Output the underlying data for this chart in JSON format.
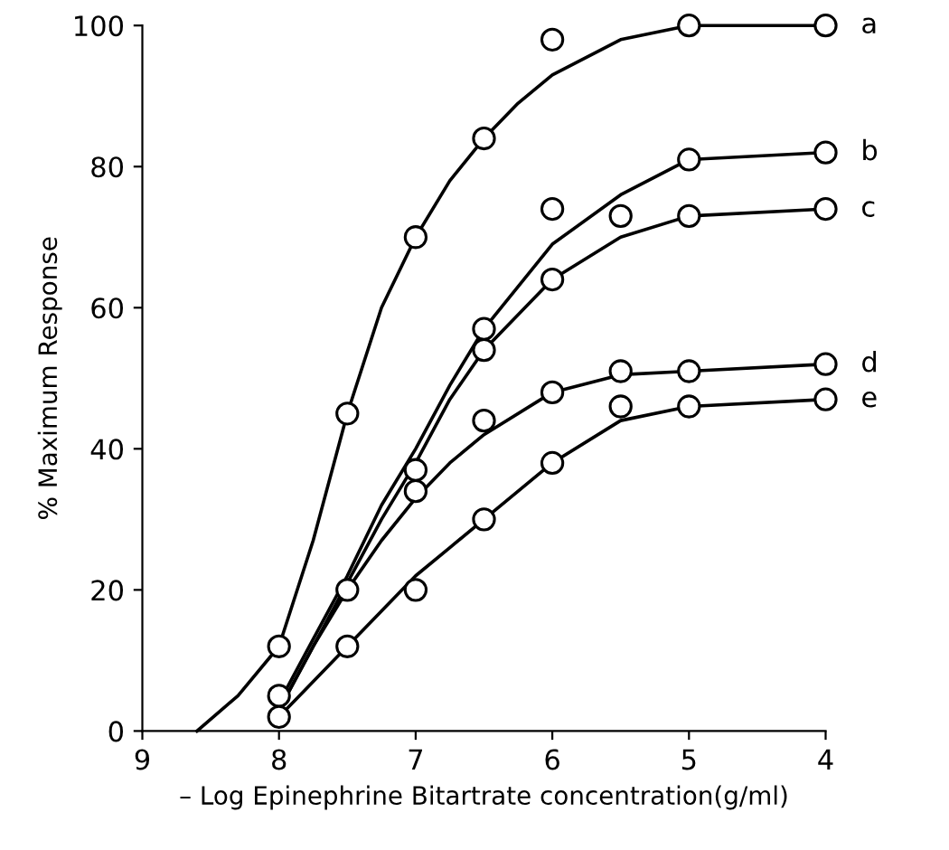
{
  "chart_data": {
    "type": "line",
    "xlabel": "– Log Epinephrine Bitartrate concentration(g/ml)",
    "ylabel": "% Maximum Response",
    "xlim": [
      9,
      4
    ],
    "ylim": [
      0,
      100
    ],
    "xticks": [
      9,
      8,
      7,
      6,
      5,
      4
    ],
    "yticks": [
      0,
      20,
      40,
      60,
      80,
      100
    ],
    "grid": false,
    "legend": false,
    "series": [
      {
        "type": "scatter",
        "marker": "circle",
        "color": "#000000",
        "x": [
          8,
          7.5,
          7,
          6.5,
          6,
          5,
          4
        ],
        "values": [
          12,
          45,
          70,
          84,
          98,
          100,
          100
        ]
      },
      {
        "type": "scatter",
        "marker": "circle",
        "color": "#000000",
        "x": [
          8,
          7.5,
          7,
          6.5,
          6,
          5,
          4
        ],
        "values": [
          5,
          20,
          37,
          57,
          74,
          81,
          82
        ]
      },
      {
        "type": "scatter",
        "marker": "circle",
        "color": "#000000",
        "x": [
          7,
          6.5,
          6,
          5.5,
          5,
          4
        ],
        "values": [
          34,
          54,
          64,
          73,
          73,
          74
        ]
      },
      {
        "type": "scatter",
        "marker": "circle",
        "color": "#000000",
        "x": [
          6.5,
          6,
          5.5,
          5,
          4
        ],
        "values": [
          44,
          48,
          51,
          51,
          52
        ]
      },
      {
        "type": "scatter",
        "marker": "circle",
        "color": "#000000",
        "x": [
          8,
          7.5,
          7,
          6.5,
          6,
          5.5,
          5,
          4
        ],
        "values": [
          2,
          12,
          20,
          30,
          38,
          46,
          46,
          47
        ]
      },
      {
        "name": "a",
        "marker": "none",
        "color": "#000000",
        "x": [
          8.6,
          8.3,
          8,
          7.75,
          7.5,
          7.25,
          7,
          6.75,
          6.5,
          6.25,
          6,
          5.5,
          5,
          4
        ],
        "values": [
          0,
          5,
          12,
          27,
          45,
          60,
          70,
          78,
          84,
          89,
          93,
          98,
          100,
          100
        ]
      },
      {
        "name": "b",
        "marker": "none",
        "color": "#000000",
        "x": [
          8,
          7.75,
          7.5,
          7.25,
          7,
          6.75,
          6.5,
          6,
          5.5,
          5,
          4
        ],
        "values": [
          4,
          13,
          22,
          32,
          40,
          49,
          57,
          69,
          76,
          81,
          82
        ]
      },
      {
        "name": "c",
        "marker": "none",
        "color": "#000000",
        "x": [
          8,
          7.75,
          7.5,
          7.25,
          7,
          6.75,
          6.5,
          6,
          5.5,
          5,
          4
        ],
        "values": [
          3,
          12,
          21,
          30,
          38,
          47,
          54,
          64,
          70,
          73,
          74
        ]
      },
      {
        "name": "d",
        "marker": "none",
        "color": "#000000",
        "x": [
          8,
          7.75,
          7.5,
          7.25,
          7,
          6.75,
          6.5,
          6,
          5.5,
          5,
          4
        ],
        "values": [
          3,
          12,
          20,
          27,
          33,
          38,
          42,
          48,
          50.5,
          51,
          52
        ]
      },
      {
        "name": "e",
        "marker": "none",
        "color": "#000000",
        "x": [
          8,
          7.75,
          7.5,
          7.25,
          7,
          6.75,
          6.5,
          6,
          5.5,
          5,
          4
        ],
        "values": [
          2,
          7,
          12,
          17,
          22,
          26,
          30,
          38,
          44,
          46,
          47
        ]
      }
    ]
  }
}
